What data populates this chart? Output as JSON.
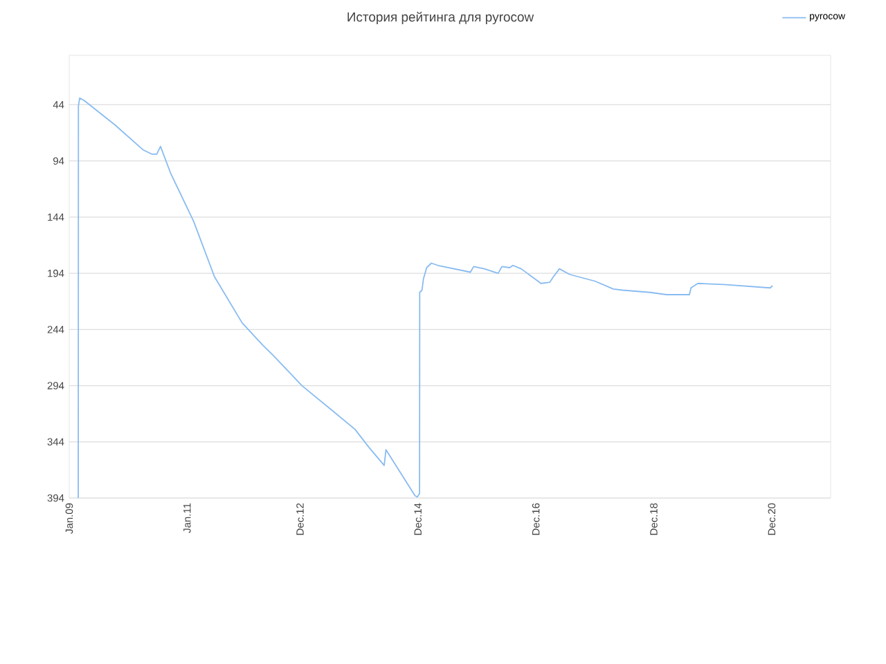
{
  "chart_data": {
    "type": "line",
    "title": "История рейтинга для pyrocow",
    "x": [
      "2009-02-26",
      "2009-02-27",
      "2009-03-07",
      "2009-04-02",
      "2009-10-12",
      "2010-04-02",
      "2010-05-29",
      "2010-06-27",
      "2010-07-20",
      "2010-09-21",
      "2011-02-11",
      "2011-06-19",
      "2011-12-07",
      "2012-04-14",
      "2012-06-24",
      "2012-12-13",
      "2013-06-17",
      "2013-11-07",
      "2014-02-01",
      "2014-05-06",
      "2014-05-17",
      "2014-11-13",
      "2014-11-27",
      "2014-12-11",
      "2014-12-12",
      "2014-12-26",
      "2015-01-04",
      "2015-01-24",
      "2015-02-22",
      "2015-04-05",
      "2015-10-22",
      "2015-11-11",
      "2016-01-16",
      "2016-04-11",
      "2016-05-04",
      "2016-06-21",
      "2016-07-11",
      "2016-09-01",
      "2017-01-02",
      "2017-02-25",
      "2017-03-20",
      "2017-04-26",
      "2017-06-28",
      "2017-12-02",
      "2018-03-26",
      "2018-05-22",
      "2018-11-09",
      "2019-02-18",
      "2019-07-10",
      "2019-07-19",
      "2019-08-31",
      "2020-02-09",
      "2020-11-22",
      "2020-12-06"
    ],
    "series": [
      {
        "name": "pyrocow",
        "color": "#88bbf0",
        "values": [
          394,
          45,
          38,
          40,
          62,
          84,
          88,
          88,
          81,
          105,
          148,
          197,
          238,
          258,
          268,
          294,
          316,
          333,
          349,
          365,
          351,
          392,
          393,
          390,
          211,
          209,
          199,
          189,
          185,
          187,
          193,
          188,
          190,
          194,
          188,
          189,
          187,
          190,
          203,
          202,
          197,
          190,
          195,
          201,
          208,
          209,
          211,
          213,
          213,
          207,
          203,
          204,
          207,
          205
        ]
      }
    ],
    "xlim": [
      "2009-01-01",
      "2021-12-01"
    ],
    "xticks": [
      {
        "value": "2009-01-01",
        "label": "Jan.09"
      },
      {
        "value": "2011-01-01",
        "label": "Jan.11"
      },
      {
        "value": "2012-12-01",
        "label": "Dec.12"
      },
      {
        "value": "2014-12-01",
        "label": "Dec.14"
      },
      {
        "value": "2016-12-01",
        "label": "Dec.16"
      },
      {
        "value": "2018-12-01",
        "label": "Dec.18"
      },
      {
        "value": "2020-12-01",
        "label": "Dec.20"
      }
    ],
    "ylim": [
      394,
      0
    ],
    "yticks": [
      44,
      94,
      144,
      194,
      244,
      294,
      344,
      394
    ],
    "grid": "y",
    "legend": "top right",
    "marker": "none",
    "line_style": "solid"
  }
}
